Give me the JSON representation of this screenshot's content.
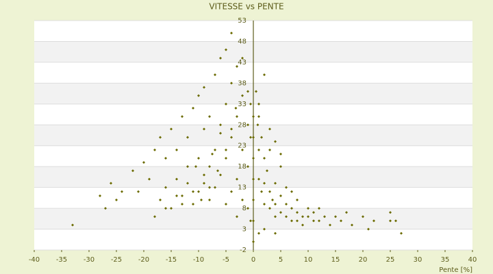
{
  "chart_data": {
    "type": "scatter",
    "title": "VITESSE vs PENTE",
    "x_label": "Pente [%]",
    "xlim": [
      -40,
      40
    ],
    "xticks": [
      -40,
      -35,
      -30,
      -25,
      -20,
      -15,
      -10,
      -5,
      0,
      5,
      10,
      15,
      20,
      25,
      30,
      35,
      40
    ],
    "ylim": [
      -2,
      53
    ],
    "yticks": [
      -2,
      3,
      8,
      13,
      18,
      23,
      28,
      33,
      38,
      43,
      48,
      53
    ],
    "grid": true,
    "series": [
      {
        "name": "VITESSE",
        "color": "#6b6b00",
        "x": [
          -33,
          -28,
          -27,
          -26,
          -25,
          -24,
          -22,
          -21,
          -20,
          -19,
          -18,
          -18,
          -17,
          -17,
          -16,
          -16,
          -15,
          -15,
          -14,
          -14,
          -13,
          -13,
          -12,
          -12,
          -11,
          -11,
          -10,
          -10,
          -10,
          -9,
          -9,
          -9,
          -8,
          -8,
          -8,
          -7,
          -7,
          -7,
          -6,
          -6,
          -6,
          -5,
          -5,
          -5,
          -5,
          -4,
          -4,
          -4,
          -4,
          -3,
          -3,
          -3,
          -3,
          -2,
          -2,
          -2,
          -2,
          -1,
          -1,
          -1,
          -1,
          -0.5,
          -0.5,
          -0.5,
          0,
          0,
          0,
          0,
          0,
          0,
          0,
          -9.5,
          -8,
          -6.5,
          -5,
          -4,
          -3.2,
          -13,
          -11,
          -9,
          -7.5,
          -6,
          -16,
          -14,
          -12,
          -10.5,
          0.5,
          0.8,
          1,
          1,
          1,
          1.5,
          1.5,
          2,
          2,
          2,
          2.5,
          3,
          3,
          3,
          3.5,
          4,
          4,
          4,
          5,
          5,
          5,
          6,
          6,
          6,
          7,
          7,
          7,
          8,
          8,
          8,
          9,
          9,
          10,
          10,
          11,
          11,
          12,
          12,
          13,
          14,
          15,
          16,
          17,
          18,
          20,
          21,
          22,
          25,
          25,
          26,
          27,
          2,
          1,
          3,
          4,
          5,
          1,
          2,
          4
        ],
        "y": [
          4,
          11,
          8,
          14,
          10,
          12,
          17,
          12,
          19,
          15,
          6,
          22,
          10,
          25,
          13,
          20,
          8,
          27,
          15,
          22,
          11,
          30,
          18,
          25,
          9,
          32,
          12,
          20,
          35,
          14,
          27,
          37,
          10,
          18,
          30,
          13,
          22,
          40,
          16,
          28,
          44,
          9,
          20,
          33,
          46,
          12,
          25,
          38,
          50,
          15,
          30,
          42,
          6,
          10,
          22,
          35,
          44,
          8,
          18,
          28,
          36,
          5,
          25,
          33,
          0,
          5,
          10,
          15,
          20,
          25,
          30,
          10,
          13,
          17,
          22,
          27,
          32,
          9,
          12,
          16,
          21,
          26,
          8,
          11,
          14,
          18,
          36,
          28,
          30,
          22,
          15,
          25,
          12,
          20,
          14,
          9,
          17,
          12,
          8,
          22,
          10,
          14,
          9,
          6,
          11,
          7,
          18,
          9,
          6,
          13,
          8,
          5,
          12,
          7,
          5,
          10,
          6,
          4,
          6,
          8,
          5,
          7,
          5,
          8,
          6,
          4,
          6,
          5,
          7,
          4,
          6,
          3,
          5,
          7,
          5,
          5,
          2,
          40,
          33,
          27,
          24,
          21,
          2,
          3,
          2
        ]
      }
    ]
  }
}
